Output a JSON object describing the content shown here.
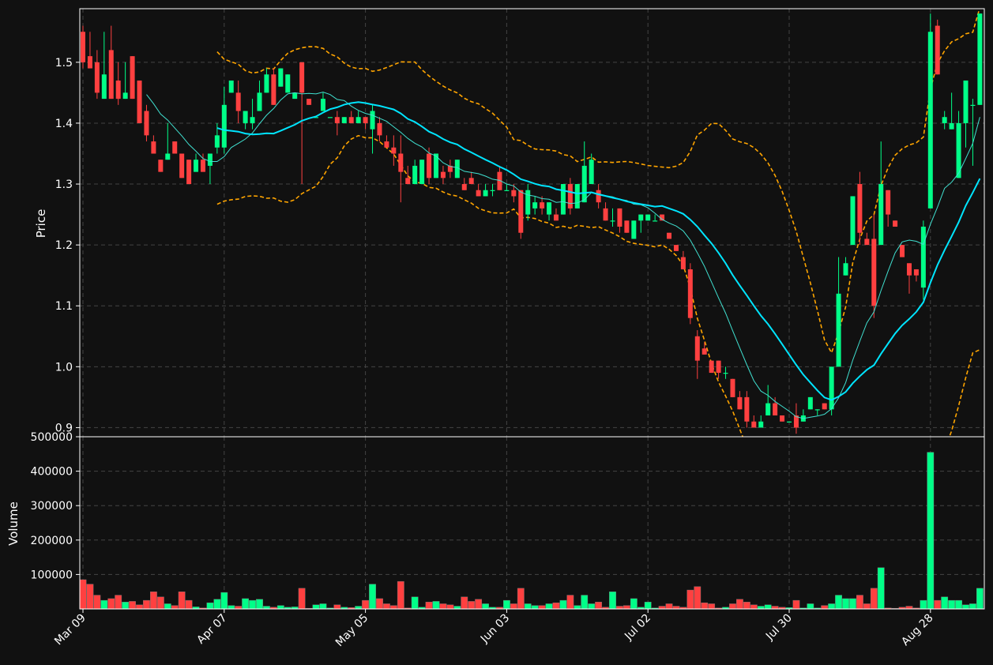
{
  "chart_data": {
    "type": "candlestick",
    "theme": {
      "background": "#111111",
      "up_color": "#00ff88",
      "down_color": "#ff4040",
      "ma_fast_color": "#40e0d0",
      "ma_slow_color": "#00e5ff",
      "band_color": "#ffa500",
      "grid": true
    },
    "price_panel": {
      "ylabel": "Price",
      "ylim": [
        0.885,
        1.588
      ],
      "yticks": [
        "0.9",
        "1.0",
        "1.1",
        "1.2",
        "1.3",
        "1.4",
        "1.5"
      ]
    },
    "volume_panel": {
      "ylabel": "Volume",
      "ylim": [
        0,
        500000
      ],
      "yticks": [
        "100000",
        "200000",
        "300000",
        "400000",
        "500000"
      ]
    },
    "xticks": [
      {
        "i": 0,
        "label": "Mar 09"
      },
      {
        "i": 20,
        "label": "Apr 07"
      },
      {
        "i": 40,
        "label": "May 05"
      },
      {
        "i": 60,
        "label": "Jun 03"
      },
      {
        "i": 80,
        "label": "Jul 02"
      },
      {
        "i": 100,
        "label": "Jul 30"
      },
      {
        "i": 120,
        "label": "Aug 28"
      }
    ],
    "candles": [
      [
        1.55,
        1.56,
        1.49,
        1.5,
        85000
      ],
      [
        1.51,
        1.55,
        1.49,
        1.49,
        72000
      ],
      [
        1.5,
        1.52,
        1.44,
        1.45,
        40000
      ],
      [
        1.44,
        1.55,
        1.44,
        1.48,
        25000
      ],
      [
        1.52,
        1.56,
        1.44,
        1.44,
        30000
      ],
      [
        1.47,
        1.5,
        1.43,
        1.44,
        40000
      ],
      [
        1.44,
        1.5,
        1.44,
        1.45,
        20000
      ],
      [
        1.51,
        1.51,
        1.44,
        1.44,
        22000
      ],
      [
        1.47,
        1.47,
        1.4,
        1.4,
        12000
      ],
      [
        1.42,
        1.43,
        1.37,
        1.38,
        25000
      ],
      [
        1.37,
        1.38,
        1.35,
        1.35,
        50000
      ],
      [
        1.34,
        1.34,
        1.32,
        1.32,
        35000
      ],
      [
        1.34,
        1.4,
        1.34,
        1.35,
        15000
      ],
      [
        1.37,
        1.37,
        1.35,
        1.35,
        10000
      ],
      [
        1.35,
        1.35,
        1.31,
        1.31,
        50000
      ],
      [
        1.34,
        1.34,
        1.3,
        1.3,
        25000
      ],
      [
        1.32,
        1.35,
        1.32,
        1.34,
        6000
      ],
      [
        1.34,
        1.35,
        1.32,
        1.32,
        3000
      ],
      [
        1.33,
        1.35,
        1.3,
        1.35,
        18000
      ],
      [
        1.36,
        1.4,
        1.35,
        1.38,
        28000
      ],
      [
        1.36,
        1.46,
        1.35,
        1.43,
        48000
      ],
      [
        1.45,
        1.47,
        1.45,
        1.47,
        10000
      ],
      [
        1.45,
        1.47,
        1.4,
        1.42,
        8000
      ],
      [
        1.4,
        1.42,
        1.39,
        1.42,
        30000
      ],
      [
        1.4,
        1.44,
        1.39,
        1.41,
        25000
      ],
      [
        1.42,
        1.47,
        1.42,
        1.45,
        28000
      ],
      [
        1.45,
        1.49,
        1.45,
        1.48,
        8000
      ],
      [
        1.48,
        1.49,
        1.43,
        1.43,
        5000
      ],
      [
        1.46,
        1.49,
        1.46,
        1.49,
        10000
      ],
      [
        1.45,
        1.48,
        1.45,
        1.48,
        5000
      ],
      [
        1.44,
        1.45,
        1.44,
        1.45,
        6000
      ],
      [
        1.5,
        1.5,
        1.3,
        1.45,
        60000
      ],
      [
        1.44,
        1.44,
        1.43,
        1.43,
        2000
      ],
      [
        1.41,
        1.41,
        1.41,
        1.41,
        12000
      ],
      [
        1.42,
        1.45,
        1.42,
        1.44,
        15000
      ],
      [
        1.41,
        1.41,
        1.41,
        1.41,
        3000
      ],
      [
        1.41,
        1.42,
        1.38,
        1.4,
        12000
      ],
      [
        1.4,
        1.41,
        1.4,
        1.41,
        5000
      ],
      [
        1.41,
        1.42,
        1.4,
        1.4,
        4000
      ],
      [
        1.4,
        1.42,
        1.4,
        1.41,
        8000
      ],
      [
        1.41,
        1.41,
        1.39,
        1.4,
        25000
      ],
      [
        1.39,
        1.43,
        1.35,
        1.42,
        72000
      ],
      [
        1.4,
        1.41,
        1.37,
        1.38,
        30000
      ],
      [
        1.37,
        1.38,
        1.36,
        1.36,
        15000
      ],
      [
        1.36,
        1.38,
        1.33,
        1.35,
        10000
      ],
      [
        1.35,
        1.38,
        1.27,
        1.32,
        80000
      ],
      [
        1.31,
        1.33,
        1.3,
        1.3,
        3000
      ],
      [
        1.3,
        1.34,
        1.3,
        1.33,
        35000
      ],
      [
        1.3,
        1.34,
        1.3,
        1.34,
        5000
      ],
      [
        1.35,
        1.36,
        1.3,
        1.31,
        20000
      ],
      [
        1.31,
        1.35,
        1.31,
        1.35,
        22000
      ],
      [
        1.32,
        1.33,
        1.3,
        1.31,
        15000
      ],
      [
        1.33,
        1.34,
        1.31,
        1.32,
        12000
      ],
      [
        1.31,
        1.34,
        1.31,
        1.34,
        8000
      ],
      [
        1.3,
        1.31,
        1.29,
        1.29,
        35000
      ],
      [
        1.31,
        1.32,
        1.3,
        1.3,
        22000
      ],
      [
        1.29,
        1.3,
        1.28,
        1.28,
        28000
      ],
      [
        1.28,
        1.3,
        1.28,
        1.29,
        15000
      ],
      [
        1.29,
        1.3,
        1.28,
        1.29,
        5000
      ],
      [
        1.32,
        1.33,
        1.29,
        1.29,
        5000
      ],
      [
        1.29,
        1.3,
        1.29,
        1.29,
        25000
      ],
      [
        1.29,
        1.3,
        1.27,
        1.28,
        15000
      ],
      [
        1.29,
        1.29,
        1.21,
        1.22,
        60000
      ],
      [
        1.25,
        1.3,
        1.24,
        1.29,
        15000
      ],
      [
        1.26,
        1.28,
        1.25,
        1.27,
        10000
      ],
      [
        1.27,
        1.28,
        1.25,
        1.26,
        10000
      ],
      [
        1.25,
        1.27,
        1.24,
        1.27,
        15000
      ],
      [
        1.25,
        1.26,
        1.24,
        1.24,
        18000
      ],
      [
        1.25,
        1.3,
        1.25,
        1.3,
        25000
      ],
      [
        1.3,
        1.31,
        1.25,
        1.26,
        40000
      ],
      [
        1.26,
        1.3,
        1.26,
        1.3,
        10000
      ],
      [
        1.27,
        1.37,
        1.27,
        1.33,
        40000
      ],
      [
        1.3,
        1.35,
        1.3,
        1.34,
        15000
      ],
      [
        1.29,
        1.3,
        1.26,
        1.27,
        20000
      ],
      [
        1.26,
        1.27,
        1.24,
        1.24,
        5000
      ],
      [
        1.24,
        1.26,
        1.23,
        1.24,
        50000
      ],
      [
        1.26,
        1.26,
        1.22,
        1.23,
        8000
      ],
      [
        1.24,
        1.24,
        1.22,
        1.22,
        10000
      ],
      [
        1.21,
        1.24,
        1.21,
        1.24,
        30000
      ],
      [
        1.24,
        1.25,
        1.22,
        1.25,
        5000
      ],
      [
        1.24,
        1.25,
        1.24,
        1.25,
        20000
      ],
      [
        1.24,
        1.25,
        1.24,
        1.24,
        3000
      ],
      [
        1.25,
        1.25,
        1.24,
        1.24,
        8000
      ],
      [
        1.22,
        1.22,
        1.21,
        1.21,
        15000
      ],
      [
        1.2,
        1.2,
        1.19,
        1.19,
        8000
      ],
      [
        1.18,
        1.19,
        1.16,
        1.16,
        5000
      ],
      [
        1.16,
        1.17,
        1.07,
        1.08,
        55000
      ],
      [
        1.05,
        1.06,
        0.98,
        1.01,
        65000
      ],
      [
        1.03,
        1.04,
        1.02,
        1.02,
        18000
      ],
      [
        1.01,
        1.01,
        0.99,
        0.99,
        15000
      ],
      [
        1.01,
        1.01,
        0.98,
        0.99,
        3000
      ],
      [
        0.99,
        1.0,
        0.98,
        0.99,
        5000
      ],
      [
        0.98,
        0.98,
        0.95,
        0.95,
        15000
      ],
      [
        0.95,
        0.96,
        0.93,
        0.93,
        28000
      ],
      [
        0.95,
        0.96,
        0.9,
        0.91,
        20000
      ],
      [
        0.91,
        0.92,
        0.9,
        0.9,
        12000
      ],
      [
        0.9,
        0.92,
        0.9,
        0.91,
        8000
      ],
      [
        0.92,
        0.97,
        0.92,
        0.94,
        12000
      ],
      [
        0.94,
        0.95,
        0.92,
        0.92,
        8000
      ],
      [
        0.92,
        0.92,
        0.91,
        0.91,
        5000
      ],
      [
        0.91,
        0.91,
        0.91,
        0.91,
        4000
      ],
      [
        0.92,
        0.94,
        0.89,
        0.9,
        25000
      ],
      [
        0.91,
        0.93,
        0.91,
        0.92,
        3000
      ],
      [
        0.93,
        0.95,
        0.93,
        0.95,
        15000
      ],
      [
        0.93,
        0.93,
        0.92,
        0.93,
        3000
      ],
      [
        0.94,
        0.94,
        0.93,
        0.93,
        10000
      ],
      [
        0.93,
        1.0,
        0.92,
        1.0,
        15000
      ],
      [
        1.0,
        1.18,
        1.0,
        1.12,
        40000
      ],
      [
        1.15,
        1.18,
        1.15,
        1.17,
        30000
      ],
      [
        1.2,
        1.28,
        1.2,
        1.28,
        30000
      ],
      [
        1.3,
        1.32,
        1.2,
        1.22,
        40000
      ],
      [
        1.21,
        1.22,
        1.2,
        1.2,
        15000
      ],
      [
        1.21,
        1.25,
        1.08,
        1.1,
        60000
      ],
      [
        1.2,
        1.37,
        1.2,
        1.3,
        120000
      ],
      [
        1.29,
        1.29,
        1.23,
        1.25,
        3000
      ],
      [
        1.24,
        1.24,
        1.23,
        1.23,
        2000
      ],
      [
        1.2,
        1.2,
        1.18,
        1.18,
        5000
      ],
      [
        1.17,
        1.17,
        1.12,
        1.15,
        8000
      ],
      [
        1.16,
        1.16,
        1.14,
        1.15,
        3000
      ],
      [
        1.13,
        1.24,
        1.11,
        1.23,
        25000
      ],
      [
        1.26,
        1.58,
        1.26,
        1.55,
        455000
      ],
      [
        1.56,
        1.57,
        1.48,
        1.48,
        25000
      ],
      [
        1.4,
        1.42,
        1.39,
        1.41,
        35000
      ],
      [
        1.39,
        1.45,
        1.39,
        1.4,
        25000
      ],
      [
        1.31,
        1.42,
        1.31,
        1.4,
        25000
      ],
      [
        1.4,
        1.47,
        1.36,
        1.47,
        12000
      ],
      [
        1.43,
        1.44,
        1.33,
        1.43,
        15000
      ],
      [
        1.43,
        1.58,
        1.43,
        1.58,
        60000
      ]
    ],
    "indicators": {
      "ma_fast_window": 10,
      "ma_slow_window": 20,
      "band_window": 20,
      "band_std": 2
    }
  }
}
